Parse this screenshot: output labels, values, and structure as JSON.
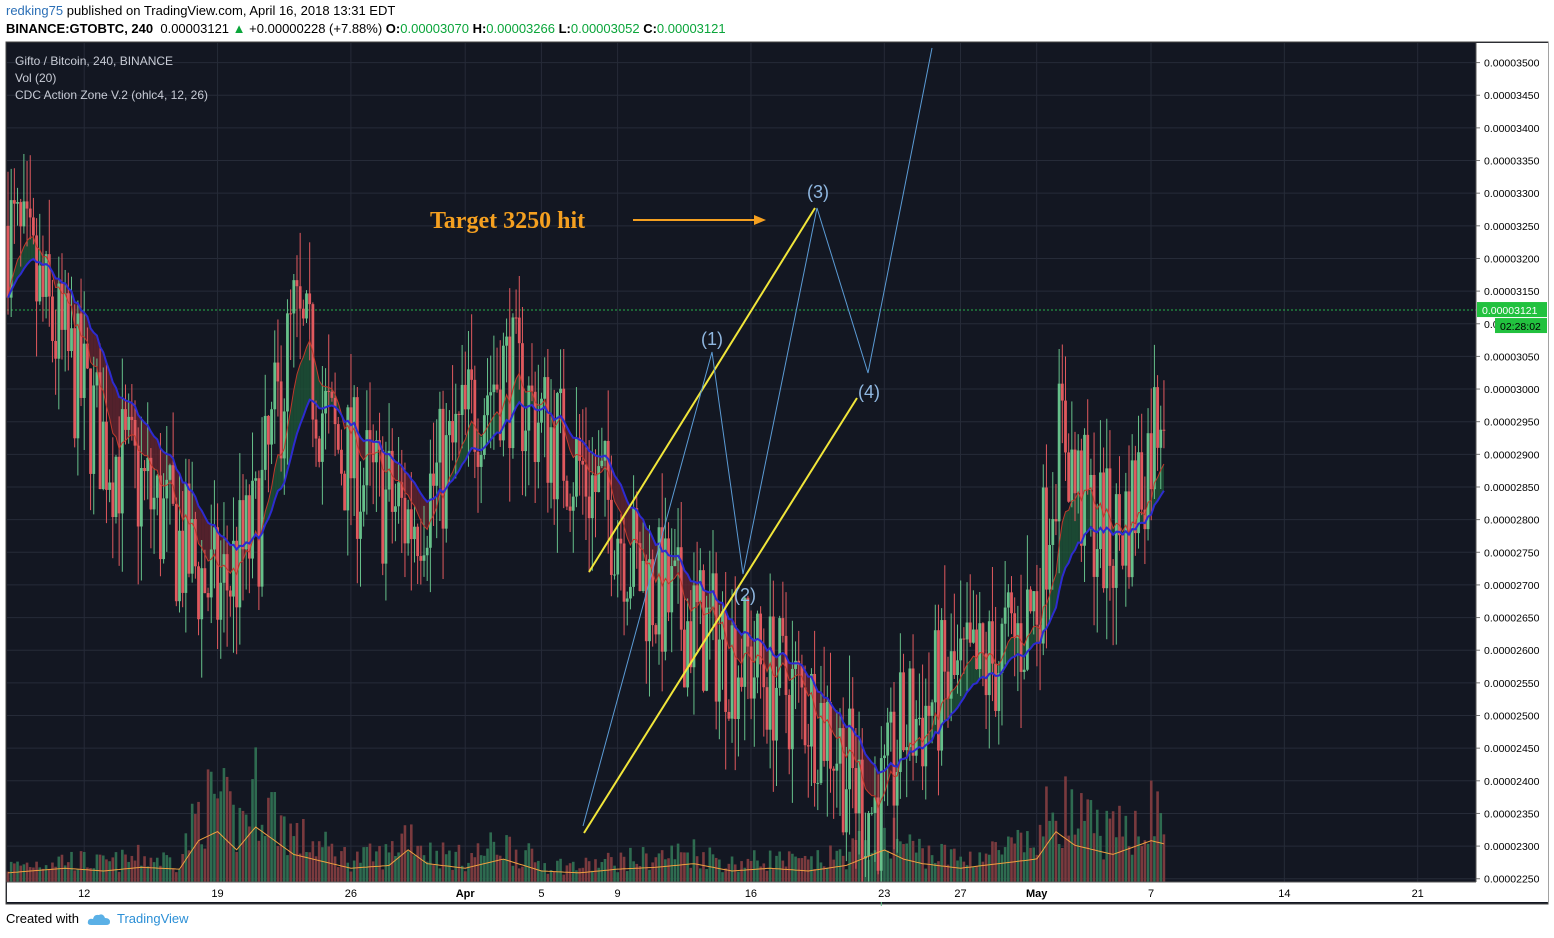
{
  "header": {
    "user": "redking75",
    "published": " published on TradingView.com, April 16, 2018 13:31 EDT",
    "symbol": "BINANCE:GTOBTC, 240",
    "price": "0.00003121",
    "arrow": "▲",
    "change": "+0.00000228 (+7.88%)",
    "o_label": "O:",
    "o_value": "0.00003070",
    "h_label": "H:",
    "h_value": "0.00003266",
    "l_label": "L:",
    "l_value": "0.00003052",
    "c_label": "C:",
    "c_value": "0.00003121"
  },
  "footer": {
    "created_with": "Created with",
    "brand": "TradingView"
  },
  "chart_data": {
    "type": "candlestick",
    "legend": [
      "Gifto / Bitcoin, 240, BINANCE",
      "Vol (20)",
      "CDC Action Zone V.2 (ohlc4, 12, 26)"
    ],
    "ylim": [
      2.245e-05,
      3.53e-05
    ],
    "y_ticks": [
      "0.00003500",
      "0.00003450",
      "0.00003400",
      "0.00003350",
      "0.00003300",
      "0.00003250",
      "0.00003200",
      "0.00003150",
      "0.00003100",
      "0.00003050",
      "0.00003000",
      "0.00002950",
      "0.00002900",
      "0.00002850",
      "0.00002800",
      "0.00002750",
      "0.00002700",
      "0.00002650",
      "0.00002600",
      "0.00002550",
      "0.00002500",
      "0.00002450",
      "0.00002400",
      "0.00002350",
      "0.00002300",
      "0.00002250"
    ],
    "x_ticks": [
      "12",
      "19",
      "26",
      "Apr",
      "5",
      "9",
      "16",
      "23",
      "27",
      "May",
      "7",
      "14",
      "21"
    ],
    "current_price": "0.00003121",
    "countdown": "02:28:02",
    "annotation": "Target 3250 hit",
    "wave_labels": [
      "(1)",
      "(2)",
      "(3)",
      "(4)"
    ],
    "price_path": [
      [
        0,
        3.25e-05
      ],
      [
        3,
        3.05e-05
      ],
      [
        5,
        2.92e-05
      ],
      [
        7,
        2.85e-05
      ],
      [
        9,
        2.76e-05
      ],
      [
        11,
        2.68e-05
      ],
      [
        13,
        2.78e-05
      ],
      [
        15,
        3.1e-05
      ],
      [
        16,
        3.02e-05
      ],
      [
        17,
        2.92e-05
      ],
      [
        19,
        2.85e-05
      ],
      [
        21,
        2.8e-05
      ],
      [
        23,
        2.88e-05
      ],
      [
        25,
        3e-05
      ],
      [
        26,
        3.03e-05
      ],
      [
        28,
        2.95e-05
      ],
      [
        30,
        2.88e-05
      ],
      [
        32,
        2.8e-05
      ],
      [
        33,
        2.72e-05
      ],
      [
        35,
        2.66e-05
      ],
      [
        37,
        2.62e-05
      ],
      [
        39,
        2.58e-05
      ],
      [
        41,
        2.54e-05
      ],
      [
        43,
        2.49e-05
      ],
      [
        44,
        2.42e-05
      ],
      [
        45,
        2.36e-05
      ],
      [
        46,
        2.36e-05
      ],
      [
        47,
        2.48e-05
      ],
      [
        48,
        2.5e-05
      ],
      [
        49,
        2.54e-05
      ],
      [
        51,
        2.56e-05
      ],
      [
        53,
        2.62e-05
      ],
      [
        54,
        2.68e-05
      ],
      [
        55,
        2.9e-05
      ],
      [
        55.5,
        2.94e-05
      ],
      [
        56,
        2.85e-05
      ],
      [
        57,
        2.8e-05
      ],
      [
        58,
        2.76e-05
      ],
      [
        59,
        2.82e-05
      ],
      [
        60,
        2.92e-05
      ],
      [
        61,
        3.08e-05
      ]
    ],
    "volume_path": [
      [
        0,
        0.1
      ],
      [
        3,
        0.15
      ],
      [
        5,
        0.12
      ],
      [
        7,
        0.16
      ],
      [
        9,
        0.14
      ],
      [
        10,
        0.45
      ],
      [
        11,
        0.55
      ],
      [
        12,
        0.35
      ],
      [
        13,
        0.6
      ],
      [
        15,
        0.3
      ],
      [
        16,
        0.25
      ],
      [
        18,
        0.15
      ],
      [
        20,
        0.18
      ],
      [
        21,
        0.35
      ],
      [
        22,
        0.2
      ],
      [
        24,
        0.15
      ],
      [
        26,
        0.25
      ],
      [
        28,
        0.12
      ],
      [
        30,
        0.1
      ],
      [
        32,
        0.14
      ],
      [
        34,
        0.16
      ],
      [
        36,
        0.2
      ],
      [
        38,
        0.12
      ],
      [
        40,
        0.15
      ],
      [
        42,
        0.12
      ],
      [
        44,
        0.18
      ],
      [
        46,
        0.35
      ],
      [
        47,
        0.25
      ],
      [
        48,
        0.2
      ],
      [
        50,
        0.15
      ],
      [
        52,
        0.2
      ],
      [
        54,
        0.25
      ],
      [
        55,
        0.55
      ],
      [
        56,
        0.4
      ],
      [
        58,
        0.3
      ],
      [
        60,
        0.45
      ],
      [
        61,
        0.4
      ]
    ]
  }
}
